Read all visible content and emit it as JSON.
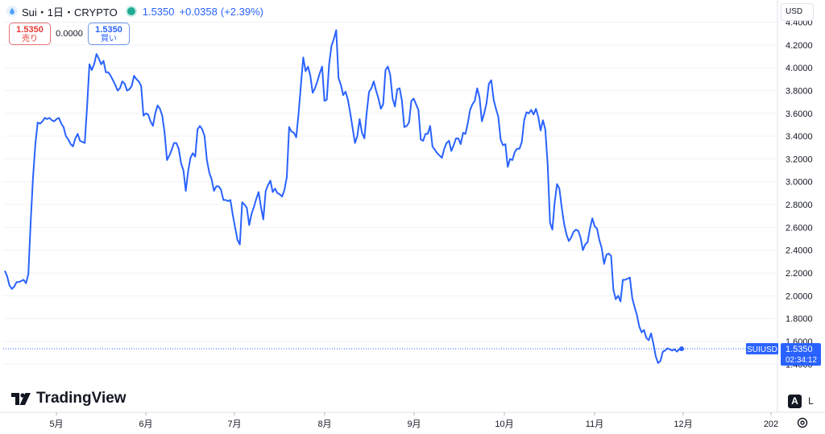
{
  "header": {
    "title": "Sui・1日・CRYPTO",
    "price": "1.5350",
    "change": "+0.0358",
    "change_pct": "(+2.39%)"
  },
  "trade": {
    "sell_price": "1.5350",
    "sell_label": "売り",
    "spread": "0.0000",
    "buy_price": "1.5350",
    "buy_label": "買い"
  },
  "currency": "USD",
  "logo_text": "TradingView",
  "controls": {
    "auto": "A",
    "log": "L"
  },
  "last_price_badge": {
    "symbol": "SUIUSD",
    "price": "1.5350",
    "countdown": "02:34:12"
  },
  "colors": {
    "line": "#2962ff",
    "badge": "#2962ff",
    "text": "#131722",
    "grid": "#f0f3fa"
  },
  "chart_data": {
    "type": "line",
    "title": "",
    "series": [
      {
        "values": [
          2.22,
          2.17,
          2.09,
          2.06,
          2.08,
          2.12,
          2.12,
          2.13,
          2.14,
          2.11,
          2.19,
          2.65,
          3.04,
          3.33,
          3.52,
          3.51,
          3.53,
          3.56,
          3.55,
          3.56,
          3.54,
          3.53,
          3.55,
          3.56,
          3.51,
          3.48,
          3.4,
          3.37,
          3.33,
          3.31,
          3.38,
          3.42,
          3.36,
          3.35,
          3.34,
          3.66,
          4.03,
          3.98,
          4.03,
          4.12,
          4.08,
          4.03,
          4.06,
          3.96,
          3.96,
          3.93,
          3.89,
          3.85,
          3.8,
          3.82,
          3.88,
          3.86,
          3.8,
          3.81,
          3.84,
          3.93,
          3.9,
          3.88,
          3.84,
          3.58,
          3.6,
          3.59,
          3.53,
          3.49,
          3.6,
          3.67,
          3.64,
          3.58,
          3.43,
          3.19,
          3.23,
          3.28,
          3.34,
          3.34,
          3.29,
          3.16,
          3.1,
          2.92,
          3.09,
          3.21,
          3.25,
          3.22,
          3.46,
          3.49,
          3.46,
          3.4,
          3.19,
          3.08,
          3.02,
          2.92,
          2.96,
          2.96,
          2.93,
          2.84,
          2.84,
          2.83,
          2.84,
          2.71,
          2.6,
          2.49,
          2.45,
          2.82,
          2.8,
          2.77,
          2.62,
          2.72,
          2.78,
          2.85,
          2.91,
          2.78,
          2.67,
          2.92,
          2.97,
          3.01,
          2.91,
          2.94,
          2.9,
          2.89,
          2.87,
          2.93,
          3.04,
          3.48,
          3.44,
          3.43,
          3.39,
          3.6,
          3.85,
          4.09,
          3.97,
          4.01,
          3.93,
          3.78,
          3.82,
          3.88,
          3.95,
          4.01,
          3.71,
          3.72,
          4.03,
          4.19,
          4.25,
          4.33,
          3.91,
          3.85,
          3.76,
          3.79,
          3.72,
          3.6,
          3.47,
          3.34,
          3.4,
          3.55,
          3.43,
          3.38,
          3.61,
          3.79,
          3.82,
          3.88,
          3.8,
          3.73,
          3.64,
          3.68,
          3.98,
          4.01,
          3.94,
          3.73,
          3.66,
          3.81,
          3.82,
          3.71,
          3.48,
          3.49,
          3.52,
          3.71,
          3.73,
          3.68,
          3.63,
          3.37,
          3.36,
          3.42,
          3.42,
          3.49,
          3.31,
          3.28,
          3.25,
          3.23,
          3.21,
          3.29,
          3.34,
          3.36,
          3.27,
          3.32,
          3.38,
          3.38,
          3.33,
          3.43,
          3.42,
          3.51,
          3.63,
          3.68,
          3.71,
          3.82,
          3.74,
          3.53,
          3.6,
          3.69,
          3.86,
          3.89,
          3.72,
          3.64,
          3.57,
          3.37,
          3.32,
          3.33,
          3.13,
          3.2,
          3.19,
          3.26,
          3.29,
          3.29,
          3.35,
          3.54,
          3.61,
          3.6,
          3.63,
          3.59,
          3.64,
          3.57,
          3.45,
          3.54,
          3.46,
          3.15,
          2.64,
          2.58,
          2.82,
          2.98,
          2.94,
          2.77,
          2.63,
          2.54,
          2.48,
          2.51,
          2.56,
          2.58,
          2.57,
          2.51,
          2.4,
          2.45,
          2.47,
          2.59,
          2.68,
          2.61,
          2.59,
          2.49,
          2.42,
          2.28,
          2.36,
          2.37,
          2.35,
          2.05,
          1.97,
          2.0,
          1.95,
          2.14,
          2.14,
          2.15,
          2.16,
          1.98,
          1.9,
          1.83,
          1.73,
          1.68,
          1.7,
          1.63,
          1.61,
          1.67,
          1.58,
          1.47,
          1.41,
          1.43,
          1.51,
          1.52,
          1.54,
          1.53,
          1.52,
          1.53,
          1.51,
          1.53,
          1.535
        ]
      }
    ],
    "x_tick_labels": [
      "5月",
      "6月",
      "7月",
      "8月",
      "9月",
      "10月",
      "11月",
      "12月",
      "202"
    ],
    "y_ticks": [
      "1.4000",
      "1.6000",
      "1.8000",
      "2.0000",
      "2.2000",
      "2.4000",
      "2.6000",
      "2.8000",
      "3.0000",
      "3.2000",
      "3.4000",
      "3.6000",
      "3.8000",
      "4.0000",
      "4.2000",
      "4.4000"
    ],
    "ylim": [
      1.4,
      4.4
    ],
    "grid": true
  }
}
